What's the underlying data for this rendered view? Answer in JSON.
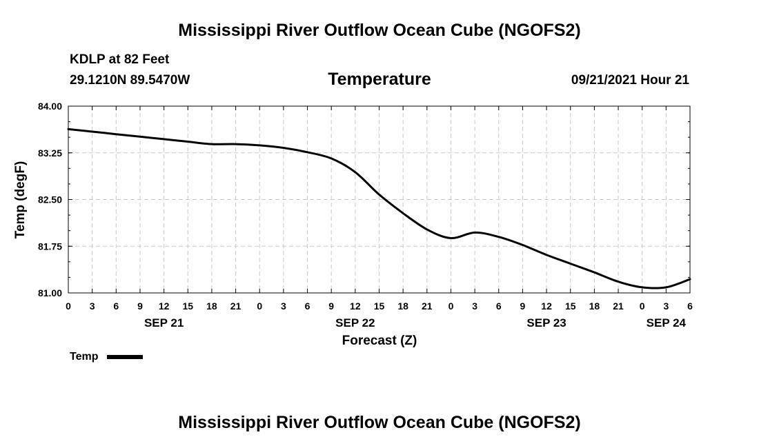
{
  "header": {
    "title_top": "Mississippi River Outflow Ocean Cube (NGOFS2)",
    "title_bottom": "Mississippi River Outflow Ocean Cube (NGOFS2)",
    "station": "KDLP at 82 Feet",
    "coords": "29.1210N  89.5470W",
    "datetime": "09/21/2021 Hour 21"
  },
  "legend": {
    "label": "Temp"
  },
  "chart_data": {
    "type": "line",
    "title": "Temperature",
    "xlabel": "Forecast (Z)",
    "ylabel": "Temp (degF)",
    "ylim": [
      81.0,
      84.0
    ],
    "yticks": [
      "84.00",
      "83.25",
      "82.50",
      "81.75",
      "81.00"
    ],
    "xlim": [
      0,
      78
    ],
    "xtick_labels": [
      "0",
      "3",
      "6",
      "9",
      "12",
      "15",
      "18",
      "21",
      "0",
      "3",
      "6",
      "9",
      "12",
      "15",
      "18",
      "21",
      "0",
      "3",
      "6",
      "9",
      "12",
      "15",
      "18",
      "21",
      "0",
      "3",
      "6"
    ],
    "date_labels": [
      {
        "label": "SEP 21",
        "hour": 12
      },
      {
        "label": "SEP 22",
        "hour": 36
      },
      {
        "label": "SEP 23",
        "hour": 60
      },
      {
        "label": "SEP 24",
        "hour": 75
      }
    ],
    "grid": true,
    "series": [
      {
        "name": "Temp",
        "x": [
          0,
          3,
          6,
          9,
          12,
          15,
          18,
          21,
          24,
          27,
          30,
          33,
          36,
          39,
          42,
          45,
          48,
          51,
          54,
          57,
          60,
          63,
          66,
          69,
          72,
          75,
          78
        ],
        "values": [
          83.63,
          83.59,
          83.55,
          83.51,
          83.47,
          83.43,
          83.39,
          83.39,
          83.37,
          83.33,
          83.26,
          83.16,
          82.94,
          82.58,
          82.28,
          82.02,
          81.88,
          81.97,
          81.9,
          81.77,
          81.61,
          81.47,
          81.33,
          81.18,
          81.09,
          81.09,
          81.22
        ]
      }
    ]
  }
}
